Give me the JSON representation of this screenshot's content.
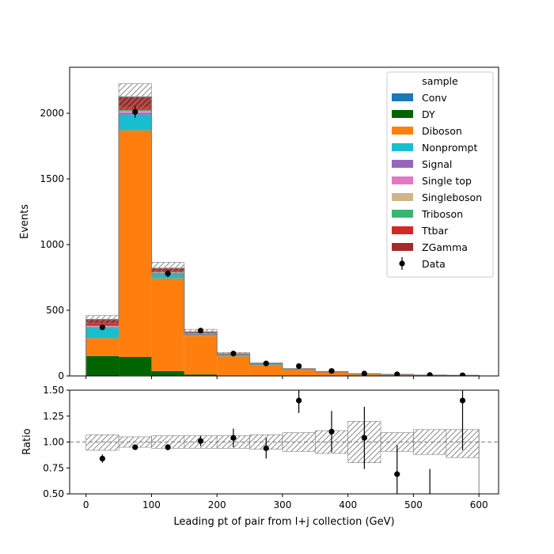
{
  "chart_data": {
    "type": "bar",
    "stacked": true,
    "xlabel": "Leading pt of pair from l+j collection (GeV)",
    "bin_edges": [
      0,
      50,
      100,
      150,
      200,
      250,
      300,
      350,
      400,
      450,
      500,
      550,
      600
    ],
    "main": {
      "ylabel": "Events",
      "ylim": [
        0,
        2350
      ],
      "yticks": [
        0,
        500,
        1000,
        1500,
        2000
      ],
      "xticks": [
        0,
        100,
        200,
        300,
        400,
        500,
        600
      ],
      "legend_title": "sample",
      "legend_position": "top-right",
      "series": [
        {
          "name": "Conv",
          "color": "#1f77b4",
          "values": [
            2,
            5,
            2,
            1,
            0,
            0,
            0,
            0,
            0,
            0,
            0,
            0
          ]
        },
        {
          "name": "DY",
          "color": "#006400",
          "values": [
            150,
            140,
            35,
            10,
            4,
            2,
            1,
            0,
            0,
            0,
            0,
            0
          ]
        },
        {
          "name": "Diboson",
          "color": "#ff7f0e",
          "values": [
            135,
            1725,
            705,
            295,
            145,
            80,
            45,
            28,
            15,
            11,
            6,
            4
          ]
        },
        {
          "name": "Nonprompt",
          "color": "#17becf",
          "values": [
            80,
            120,
            30,
            10,
            8,
            5,
            3,
            2,
            1,
            0,
            0,
            0
          ]
        },
        {
          "name": "Signal",
          "color": "#9467bd",
          "values": [
            5,
            12,
            8,
            3,
            2,
            1,
            1,
            0,
            0,
            0,
            0,
            0
          ]
        },
        {
          "name": "Single top",
          "color": "#e377c2",
          "values": [
            4,
            8,
            4,
            2,
            1,
            1,
            0,
            0,
            0,
            0,
            0,
            0
          ]
        },
        {
          "name": "Singleboson",
          "color": "#d2b48c",
          "values": [
            3,
            6,
            3,
            1,
            1,
            0,
            0,
            0,
            0,
            0,
            0,
            0
          ]
        },
        {
          "name": "Triboson",
          "color": "#3cb371",
          "values": [
            4,
            8,
            5,
            2,
            2,
            1,
            1,
            1,
            0,
            0,
            0,
            0
          ]
        },
        {
          "name": "Ttbar",
          "color": "#d62728",
          "values": [
            10,
            20,
            10,
            5,
            3,
            2,
            1,
            1,
            0,
            0,
            0,
            0
          ]
        },
        {
          "name": "ZGamma",
          "color": "#a52a2a",
          "values": [
            37,
            81,
            18,
            6,
            3,
            2,
            1,
            0,
            0,
            0,
            0,
            0
          ]
        }
      ],
      "uncertainty": [
        30,
        100,
        45,
        20,
        10,
        6,
        4,
        3,
        2,
        2,
        1,
        1
      ],
      "data": {
        "name": "Data",
        "x": [
          25,
          75,
          125,
          175,
          225,
          275,
          325,
          375,
          425,
          475,
          525,
          575
        ],
        "y": [
          370,
          2010,
          780,
          345,
          170,
          95,
          75,
          38,
          18,
          12,
          7,
          5
        ],
        "yerr": [
          19,
          45,
          28,
          19,
          13,
          10,
          9,
          6,
          4,
          3.5,
          2.6,
          2.2
        ]
      }
    },
    "ratio": {
      "ylabel": "Ratio",
      "ylim": [
        0.5,
        1.5
      ],
      "yticks": [
        "0.50",
        "0.75",
        "1.00",
        "1.25",
        "1.50"
      ],
      "reference": 1.0,
      "band_low": [
        0.92,
        0.95,
        0.94,
        0.94,
        0.94,
        0.93,
        0.91,
        0.89,
        0.8,
        0.91,
        0.88,
        0.85
      ],
      "band_high": [
        1.07,
        1.05,
        1.06,
        1.06,
        1.06,
        1.07,
        1.09,
        1.11,
        1.2,
        1.09,
        1.12,
        1.12
      ],
      "points": {
        "x": [
          25,
          75,
          125,
          175,
          225,
          275,
          325,
          375,
          425,
          475,
          525,
          575
        ],
        "y": [
          0.84,
          0.95,
          0.95,
          1.01,
          1.04,
          0.94,
          1.4,
          1.1,
          1.04,
          0.69,
          0.36,
          1.4
        ],
        "err": [
          0.04,
          0.02,
          0.03,
          0.05,
          0.09,
          0.1,
          0.12,
          0.2,
          0.3,
          0.28,
          0.38,
          0.48
        ]
      }
    }
  }
}
